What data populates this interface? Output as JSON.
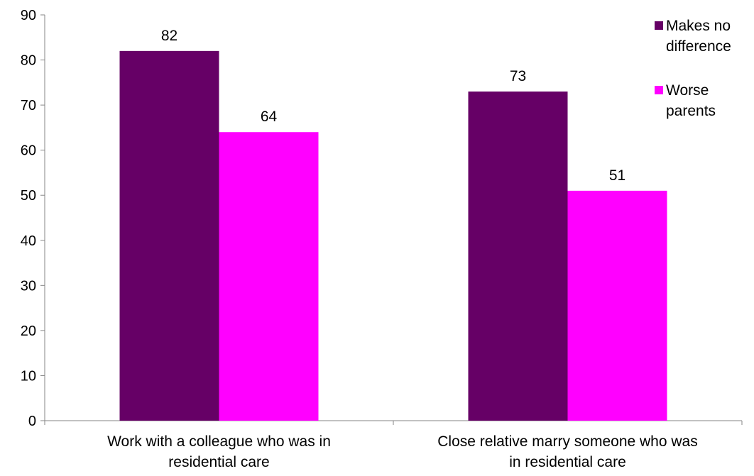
{
  "chart_data": {
    "type": "bar",
    "categories": [
      [
        "Work with a colleague who was in",
        "residential care"
      ],
      [
        "Close relative marry someone who was",
        "in residential care"
      ]
    ],
    "series": [
      {
        "name": [
          "Makes no",
          "difference"
        ],
        "values": [
          82,
          73
        ],
        "color": "#660066"
      },
      {
        "name": [
          "Worse",
          "parents"
        ],
        "values": [
          64,
          51
        ],
        "color": "#ff00ff"
      }
    ],
    "ylim": [
      0,
      90
    ],
    "yticks": [
      0,
      10,
      20,
      30,
      40,
      50,
      60,
      70,
      80,
      90
    ],
    "data_labels": true,
    "grid": false,
    "legend_position": "top-right"
  }
}
